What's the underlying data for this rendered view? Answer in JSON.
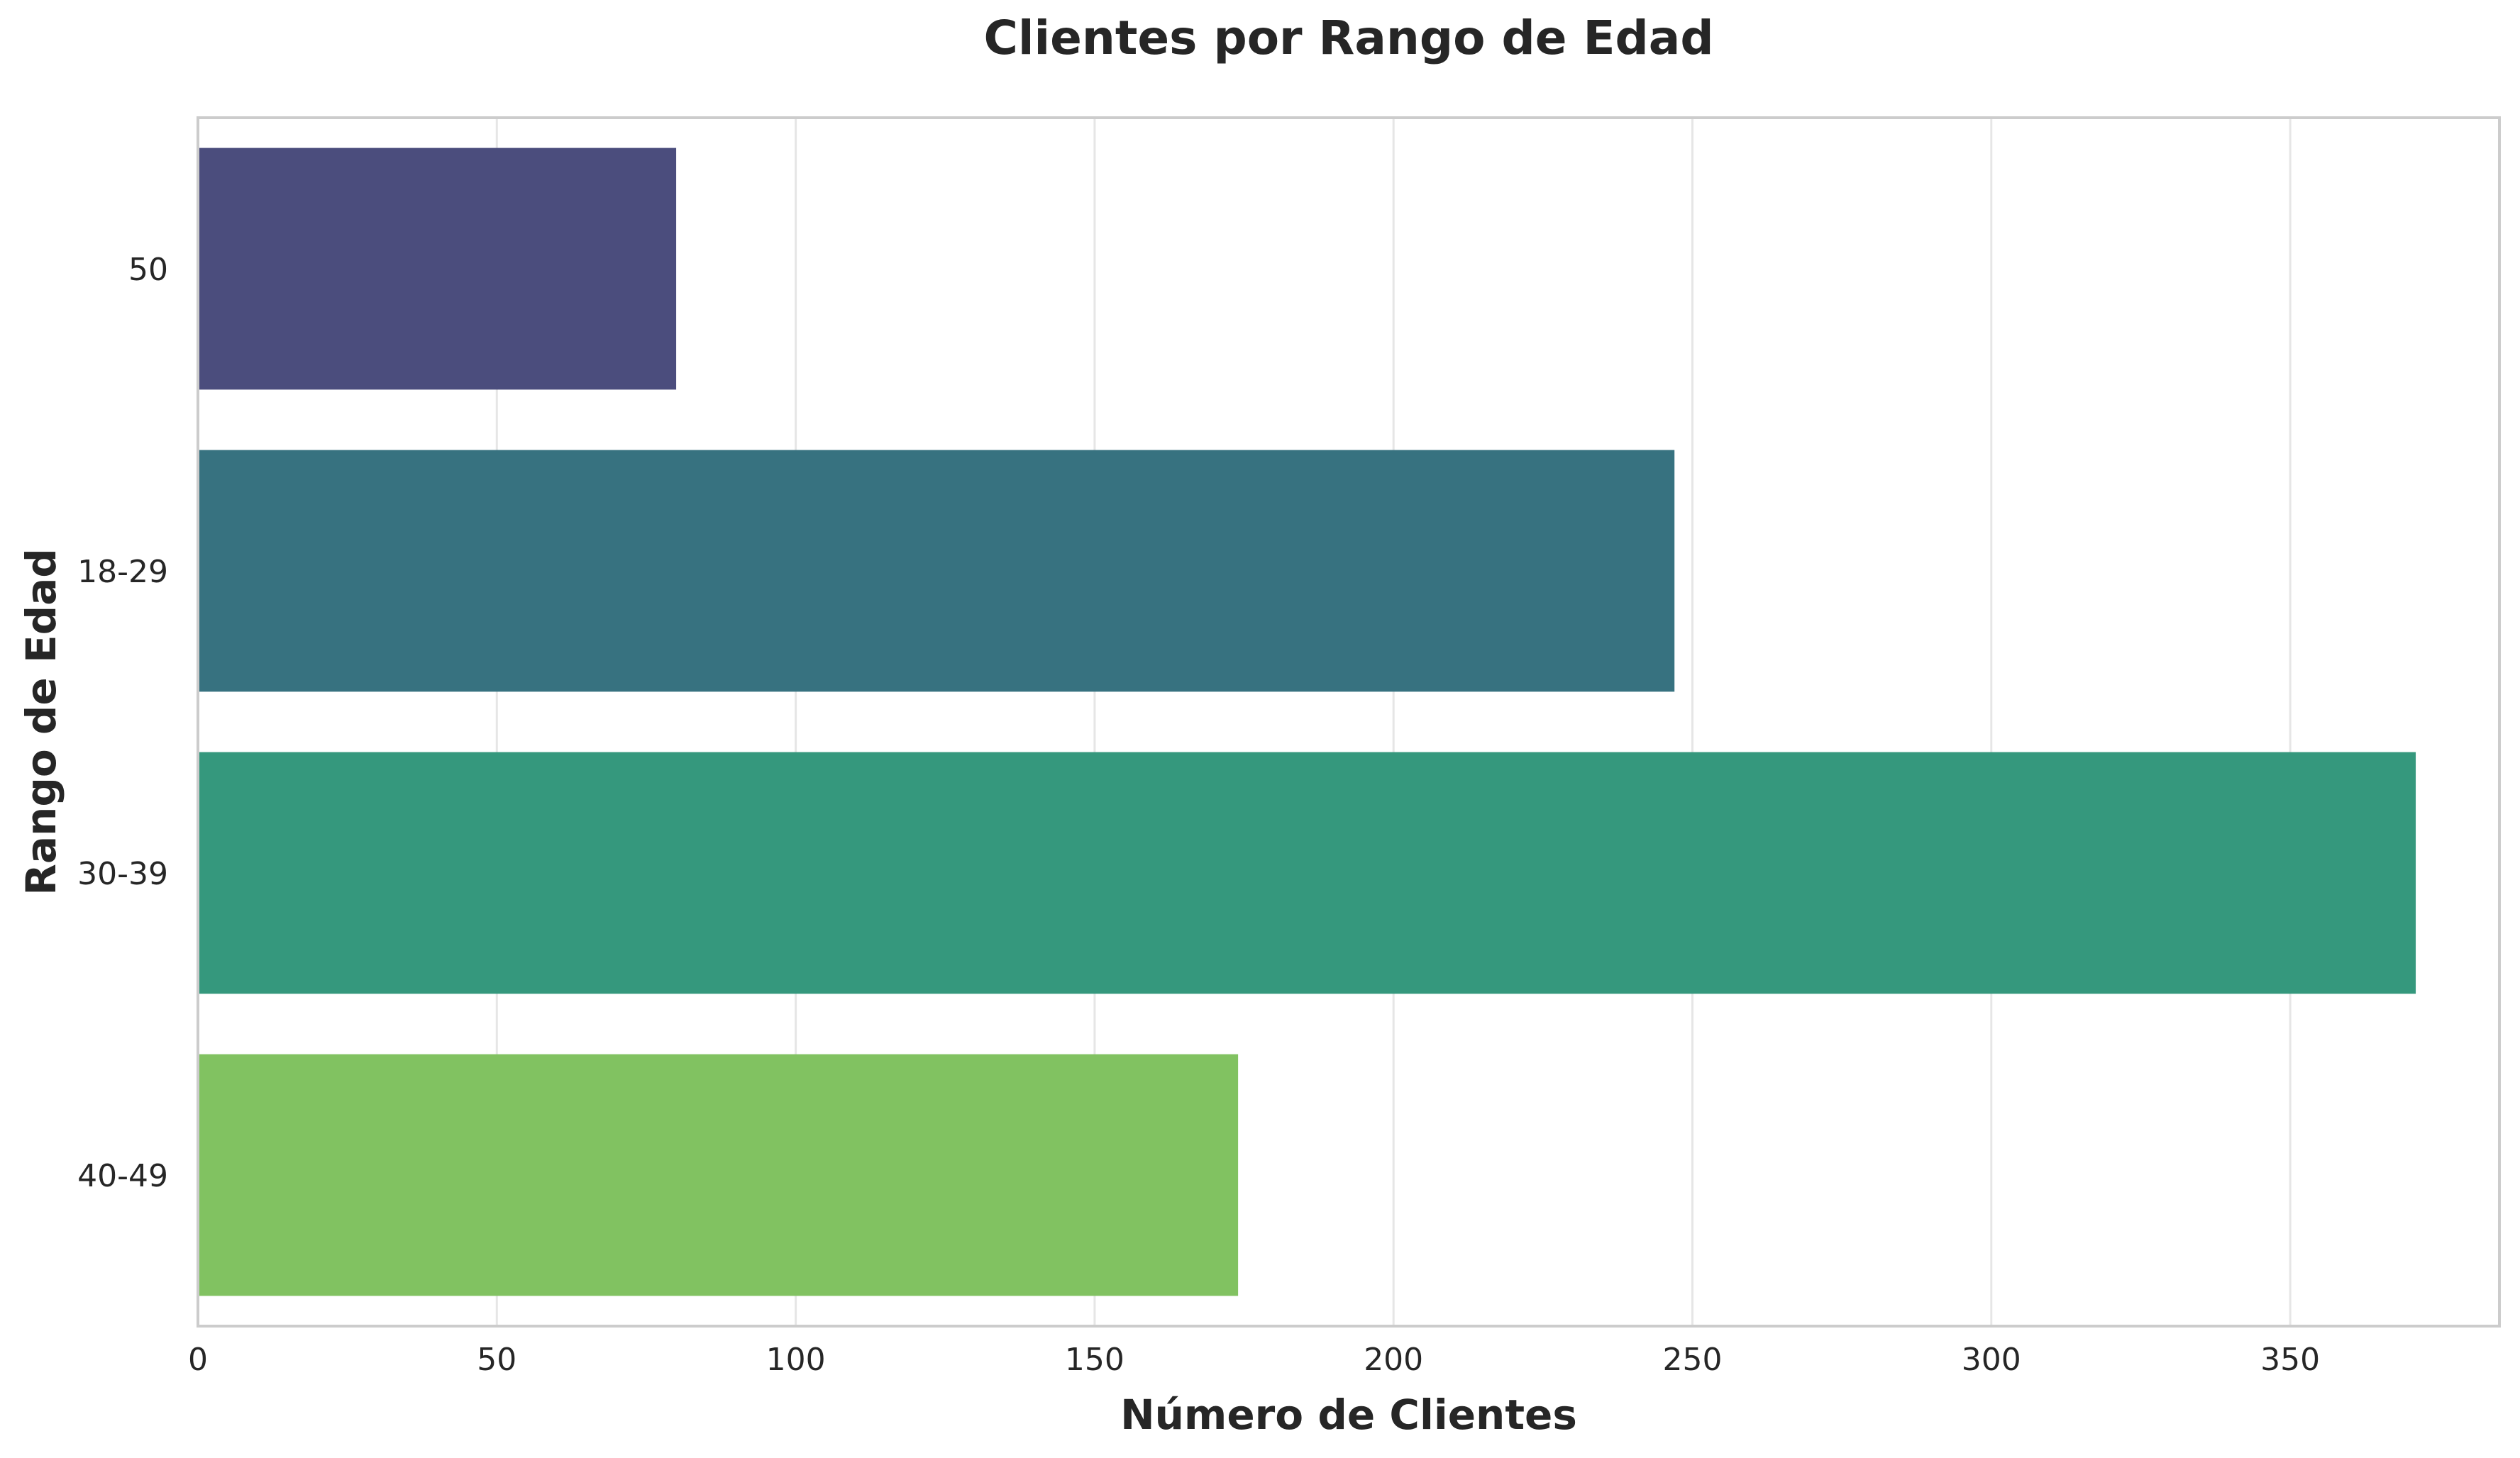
{
  "chart_data": {
    "type": "bar",
    "orientation": "horizontal",
    "title": "Clientes por Rango de Edad",
    "xlabel": "Número de Clientes",
    "ylabel": "Rango de Edad",
    "categories": [
      "50",
      "18-29",
      "30-39",
      "40-49"
    ],
    "values": [
      80,
      247,
      371,
      174
    ],
    "colors": [
      "#4b4d7d",
      "#377280",
      "#35987d",
      "#81c261"
    ],
    "xlim": [
      0,
      385
    ],
    "xticks": [
      0,
      50,
      100,
      150,
      200,
      250,
      300,
      350
    ],
    "grid": true,
    "legend": "none"
  }
}
